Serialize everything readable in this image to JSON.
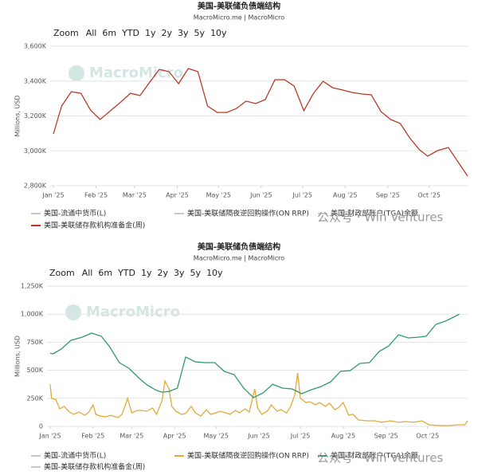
{
  "watermark": "公众号 · Win Ventures",
  "chart_data": [
    {
      "type": "line",
      "title": "美国-美联储负债端结构",
      "subtitle": "MacroMicro.me | MacroMicro",
      "logo": "MacroMicro",
      "zoom_label": "Zoom",
      "zoom_buttons": [
        "All",
        "6m",
        "YTD",
        "1y",
        "2y",
        "3y",
        "5y",
        "10y"
      ],
      "ylabel": "Millions, USD",
      "grid": true,
      "xlim": [
        0,
        301
      ],
      "xticks": [
        {
          "value": 0,
          "label": "Jan '25"
        },
        {
          "value": 31,
          "label": "Feb '25"
        },
        {
          "value": 59,
          "label": "Mar '25"
        },
        {
          "value": 90,
          "label": "Apr '25"
        },
        {
          "value": 120,
          "label": "May '25"
        },
        {
          "value": 151,
          "label": "Jun '25"
        },
        {
          "value": 181,
          "label": "Jul '25"
        },
        {
          "value": 212,
          "label": "Aug '25"
        },
        {
          "value": 243,
          "label": "Sep '25"
        },
        {
          "value": 273,
          "label": "Oct '25"
        }
      ],
      "ylim": [
        2800,
        3600
      ],
      "yticks": [
        {
          "value": 2800,
          "label": "2,800K"
        },
        {
          "value": 3000,
          "label": "3,000K"
        },
        {
          "value": 3200,
          "label": "3,200K"
        },
        {
          "value": 3400,
          "label": "3,400K"
        },
        {
          "value": 3600,
          "label": "3,600K"
        }
      ],
      "inactive_color": "#c8c8c8",
      "inactive_legend": [
        "美国-流通中货币(L)",
        "美国-美联储隔夜逆回购操作(ON RRP)",
        "美国-财政部账户(TGA)余额"
      ],
      "series": [
        {
          "name": "美国-美联储存款机构准备金(周)",
          "color": "#b83a26",
          "x": [
            0,
            6,
            13,
            20,
            27,
            34,
            42,
            49,
            56,
            63,
            70,
            77,
            84,
            91,
            98,
            105,
            112,
            119,
            126,
            133,
            140,
            147,
            154,
            161,
            168,
            175,
            182,
            189,
            196,
            203,
            210,
            217,
            224,
            231,
            238,
            245,
            252,
            259,
            266,
            272,
            279,
            287,
            301
          ],
          "values": [
            3097,
            3257,
            3339,
            3330,
            3234,
            3180,
            3234,
            3280,
            3330,
            3317,
            3394,
            3467,
            3454,
            3385,
            3472,
            3454,
            3257,
            3220,
            3220,
            3243,
            3285,
            3271,
            3294,
            3408,
            3408,
            3371,
            3230,
            3330,
            3399,
            3362,
            3349,
            3335,
            3326,
            3321,
            3225,
            3180,
            3157,
            3074,
            3006,
            2969,
            3001,
            3019,
            2855
          ]
        }
      ]
    },
    {
      "type": "line",
      "title": "美国-美联储负债端结构",
      "subtitle": "MacroMicro.me | MacroMicro",
      "logo": "MacroMicro",
      "zoom_label": "Zoom",
      "zoom_buttons": [
        "All",
        "6m",
        "YTD",
        "1y",
        "2y",
        "3y",
        "5y",
        "10y"
      ],
      "ylabel": "Millions, USD",
      "grid": true,
      "xlim": [
        0,
        302
      ],
      "xticks": [
        {
          "value": 0,
          "label": "Jan '25"
        },
        {
          "value": 31,
          "label": "Feb '25"
        },
        {
          "value": 59,
          "label": "Mar '25"
        },
        {
          "value": 90,
          "label": "Apr '25"
        },
        {
          "value": 120,
          "label": "May '25"
        },
        {
          "value": 151,
          "label": "Jun '25"
        },
        {
          "value": 181,
          "label": "Jul '25"
        },
        {
          "value": 212,
          "label": "Aug '25"
        },
        {
          "value": 243,
          "label": "Sep '25"
        },
        {
          "value": 273,
          "label": "Oct '25"
        }
      ],
      "ylim": [
        0,
        1250
      ],
      "yticks": [
        0,
        {
          "value": 250,
          "label": "250K"
        },
        {
          "value": 500,
          "label": "500K"
        },
        {
          "value": 750,
          "label": "750K"
        },
        {
          "value": 1000,
          "label": "1,000K"
        },
        {
          "value": 1250,
          "label": "1,250K"
        }
      ],
      "inactive_color": "#c8c8c8",
      "inactive_legend": [
        "美国-流通中货币(L)",
        "美国-美联储存款机构准备金(周)"
      ],
      "series": [
        {
          "name": "美国-美联储隔夜逆回购操作(ON RRP)",
          "color": "#e3a93a",
          "x": [
            0,
            1,
            4,
            7,
            10,
            14,
            17,
            21,
            25,
            28,
            31,
            33,
            36,
            40,
            44,
            49,
            52,
            56,
            59,
            63,
            66,
            70,
            74,
            77,
            81,
            83,
            86,
            88,
            91,
            95,
            98,
            102,
            105,
            109,
            113,
            116,
            120,
            123,
            127,
            130,
            134,
            137,
            141,
            144,
            148,
            150,
            153,
            157,
            160,
            164,
            167,
            171,
            174,
            177,
            179,
            181,
            185,
            188,
            192,
            195,
            199,
            202,
            206,
            209,
            212,
            216,
            219,
            223,
            229,
            235,
            240,
            246,
            252,
            257,
            263,
            269,
            274,
            281,
            289,
            295,
            300,
            302
          ],
          "values": [
            376,
            249,
            241,
            156,
            178,
            128,
            107,
            128,
            99,
            128,
            192,
            107,
            92,
            85,
            99,
            78,
            107,
            249,
            121,
            142,
            142,
            135,
            163,
            107,
            234,
            405,
            334,
            178,
            135,
            107,
            114,
            178,
            121,
            92,
            149,
            107,
            121,
            135,
            121,
            107,
            142,
            121,
            156,
            128,
            334,
            163,
            107,
            135,
            192,
            135,
            149,
            121,
            178,
            284,
            476,
            249,
            213,
            220,
            192,
            213,
            178,
            206,
            149,
            170,
            213,
            99,
            107,
            57,
            50,
            50,
            36,
            50,
            36,
            43,
            36,
            50,
            14,
            7,
            7,
            14,
            14,
            50
          ]
        },
        {
          "name": "美国-财政部账户(TGA)余额",
          "color": "#2e9a6b",
          "x": [
            0,
            2,
            8,
            15,
            23,
            30,
            37,
            43,
            50,
            57,
            64,
            70,
            77,
            81,
            86,
            92,
            98,
            105,
            112,
            119,
            126,
            133,
            140,
            147,
            154,
            161,
            168,
            175,
            182,
            189,
            196,
            203,
            210,
            217,
            224,
            231,
            238,
            245,
            252,
            259,
            266,
            272,
            279,
            286,
            294,
            296
          ],
          "values": [
            653,
            646,
            689,
            767,
            795,
            831,
            803,
            710,
            568,
            518,
            433,
            369,
            320,
            305,
            312,
            341,
            618,
            575,
            568,
            568,
            490,
            462,
            341,
            256,
            298,
            376,
            341,
            334,
            291,
            327,
            355,
            398,
            490,
            497,
            561,
            568,
            668,
            717,
            817,
            788,
            795,
            803,
            909,
            938,
            987,
            1001
          ]
        }
      ]
    }
  ]
}
